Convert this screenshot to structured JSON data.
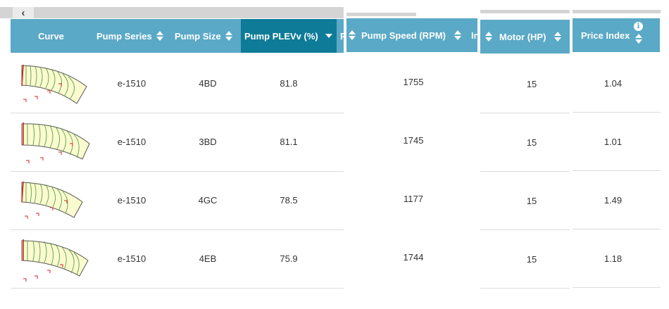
{
  "columns": {
    "curve": "Curve",
    "pump_series": "Pump Series",
    "pump_size": "Pump Size",
    "pump_plev": "Pump PLEVv (%)",
    "clipped_next": "P",
    "pump_speed": "Pump Speed (RPM)",
    "clipped_in": "In",
    "motor": "Motor (HP)",
    "price_index": "Price Index"
  },
  "icons": {
    "scroll_left": "chevron-left-icon",
    "sort": "sort-arrows-icon",
    "active_sort": "sort-descending-icon",
    "info": "info-icon"
  },
  "colors": {
    "header": "#5aa9c6",
    "header_active": "#0e7b98",
    "curve_fill": "#fbfbd0",
    "curve_lines": "#5a9e4a",
    "curve_marks": "#d9231f"
  },
  "scroll_left_glyph": "‹",
  "info_glyph": "i",
  "rows": [
    {
      "series": "e-1510",
      "size": "4BD",
      "plev": "81.8",
      "speed": "1755",
      "motor": "15",
      "price": "1.04"
    },
    {
      "series": "e-1510",
      "size": "3BD",
      "plev": "81.1",
      "speed": "1745",
      "motor": "15",
      "price": "1.01"
    },
    {
      "series": "e-1510",
      "size": "4GC",
      "plev": "78.5",
      "speed": "1177",
      "motor": "15",
      "price": "1.49"
    },
    {
      "series": "e-1510",
      "size": "4EB",
      "plev": "75.9",
      "speed": "1744",
      "motor": "15",
      "price": "1.18"
    }
  ]
}
